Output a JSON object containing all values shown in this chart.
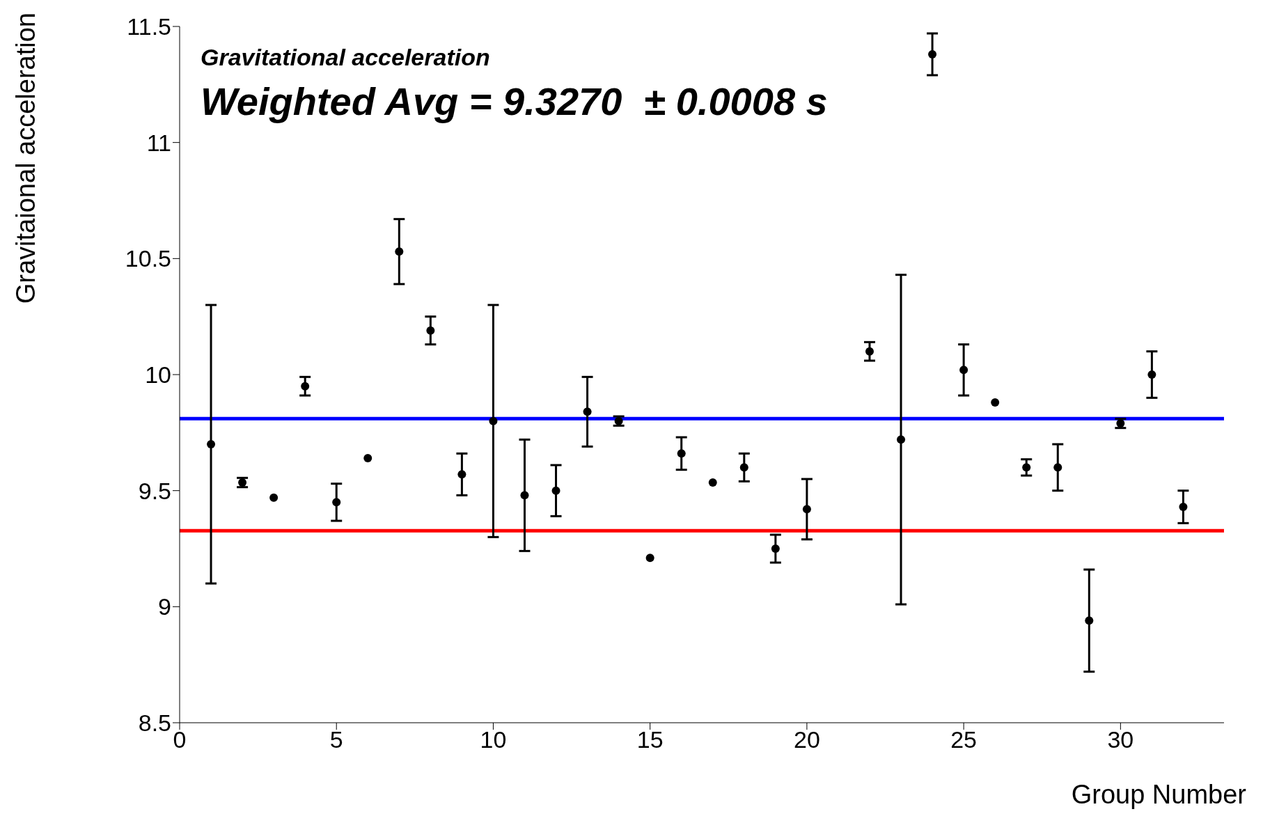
{
  "chart_data": {
    "type": "scatter",
    "xlabel": "Group Number",
    "ylabel": "Gravitaional acceleration",
    "annotations": [
      "Gravitational acceleration",
      "Weighted Avg = 9.3270  ± 0.0008 s"
    ],
    "x": [
      1,
      2,
      3,
      4,
      5,
      6,
      7,
      8,
      9,
      10,
      11,
      12,
      13,
      14,
      15,
      16,
      17,
      18,
      19,
      20,
      22,
      23,
      24,
      25,
      26,
      27,
      28,
      29,
      30,
      31,
      32
    ],
    "series": [
      {
        "color": "#000000",
        "values": [
          9.7,
          9.535,
          9.47,
          9.95,
          9.45,
          9.64,
          10.53,
          10.19,
          9.57,
          9.8,
          9.48,
          9.5,
          9.84,
          9.8,
          9.21,
          9.66,
          9.535,
          9.6,
          9.25,
          9.42,
          10.1,
          9.72,
          11.38,
          10.02,
          9.88,
          9.6,
          9.6,
          8.94,
          9.79,
          10.0,
          9.43
        ],
        "errors": [
          0.6,
          0.02,
          null,
          0.04,
          0.08,
          null,
          0.14,
          0.06,
          0.09,
          0.5,
          0.24,
          0.11,
          0.15,
          0.02,
          null,
          0.07,
          null,
          0.06,
          0.06,
          0.13,
          0.04,
          0.71,
          0.09,
          0.11,
          null,
          0.035,
          0.1,
          0.22,
          0.02,
          0.1,
          0.07
        ]
      }
    ],
    "xlim": [
      0,
      33.3
    ],
    "xticks": [
      0,
      5,
      10,
      15,
      20,
      25,
      30
    ],
    "ylim": [
      8.5,
      11.5
    ],
    "yticks": [
      8.5,
      9,
      9.5,
      10,
      10.5,
      11,
      11.5
    ],
    "ref_lines": [
      {
        "axis": "y",
        "value": 9.81,
        "color": "#0000ff"
      },
      {
        "axis": "y",
        "value": 9.327,
        "color": "#ff0000"
      }
    ],
    "marker": "circle",
    "grid": false
  }
}
